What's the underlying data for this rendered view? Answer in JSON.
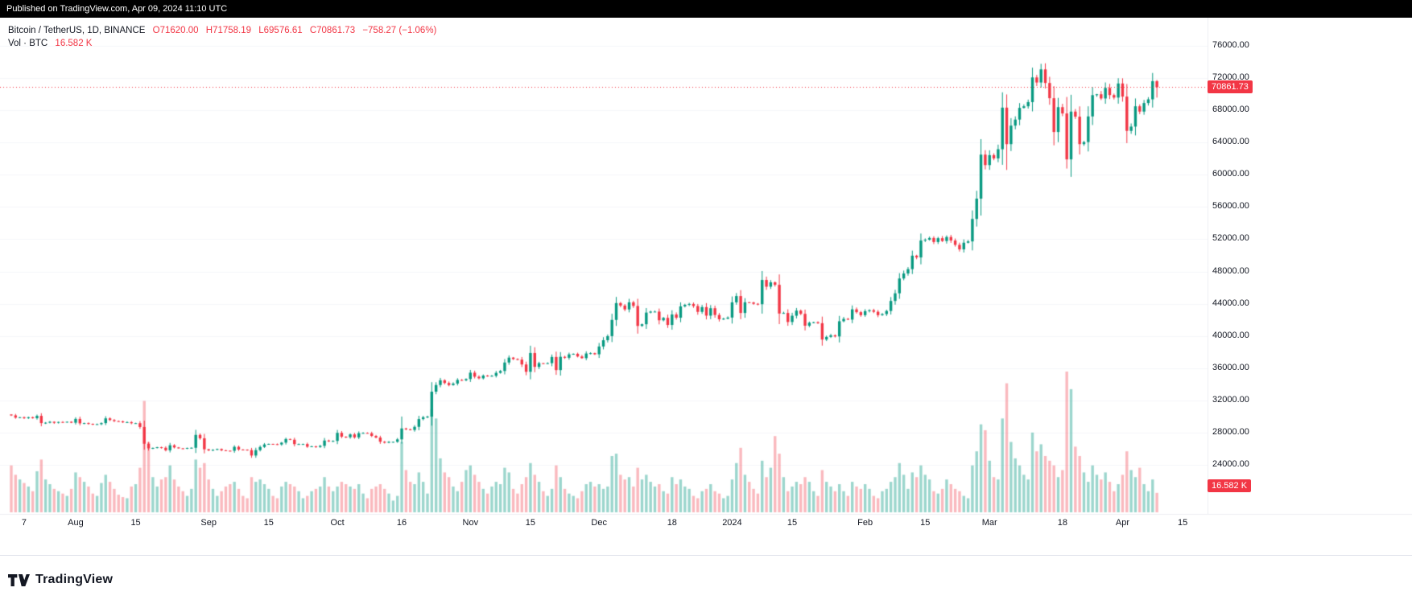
{
  "published_bar": {
    "text": "Published on TradingView.com, Apr 09, 2024 11:10 UTC"
  },
  "legend": {
    "symbol": "Bitcoin / TetherUS, 1D, BINANCE",
    "ohlc": {
      "o": "O71620.00",
      "h": "H71758.19",
      "l": "L69576.61",
      "c": "C70861.73",
      "change": "−758.27 (−1.06%)"
    },
    "volume_label": "Vol · BTC",
    "volume_value": "16.582 K"
  },
  "axis": {
    "price_badge": "70861.73",
    "volume_badge": "16.582 K"
  },
  "footer": {
    "brand": "TradingView"
  },
  "colors": {
    "up": "#089981",
    "down": "#F23645",
    "vol_up": "rgba(8,153,129,0.40)",
    "vol_down": "rgba(242,54,69,0.35)",
    "accent_red": "#F23645",
    "text_dark": "#131722",
    "grid": "#f5f6fa",
    "axis_line": "#eceef2"
  },
  "chart_data": {
    "type": "candlestick",
    "title": "Bitcoin / TetherUS, 1D, BINANCE",
    "legend_last": {
      "open": 71620.0,
      "high": 71758.19,
      "low": 69576.61,
      "close": 70861.73,
      "change": -758.27,
      "change_pct": -1.06
    },
    "ylim": [
      22800,
      76800
    ],
    "y_ticks": [
      24000,
      28000,
      32000,
      36000,
      40000,
      44000,
      48000,
      52000,
      56000,
      60000,
      64000,
      68000,
      72000,
      76000
    ],
    "x_ticks": [
      {
        "i": 3,
        "label": "7"
      },
      {
        "i": 15,
        "label": "Aug"
      },
      {
        "i": 29,
        "label": "15"
      },
      {
        "i": 46,
        "label": "Sep"
      },
      {
        "i": 60,
        "label": "15"
      },
      {
        "i": 76,
        "label": "Oct"
      },
      {
        "i": 91,
        "label": "16"
      },
      {
        "i": 107,
        "label": "Nov"
      },
      {
        "i": 121,
        "label": "15"
      },
      {
        "i": 137,
        "label": "Dec"
      },
      {
        "i": 154,
        "label": "18"
      },
      {
        "i": 168,
        "label": "2024"
      },
      {
        "i": 182,
        "label": "15"
      },
      {
        "i": 199,
        "label": "Feb"
      },
      {
        "i": 213,
        "label": "15"
      },
      {
        "i": 228,
        "label": "Mar"
      },
      {
        "i": 245,
        "label": "18"
      },
      {
        "i": 259,
        "label": "Apr"
      },
      {
        "i": 273,
        "label": "15"
      }
    ],
    "first_open": 30250,
    "closes": [
      30140,
      29860,
      29910,
      29800,
      29910,
      29790,
      30080,
      29180,
      29230,
      29350,
      29220,
      29320,
      29280,
      29350,
      29230,
      29700,
      29150,
      29180,
      29090,
      29040,
      29050,
      29180,
      29770,
      29560,
      29430,
      29400,
      29280,
      29300,
      29170,
      29170,
      28700,
      26620,
      26050,
      26100,
      26190,
      26120,
      25810,
      26430,
      26160,
      26050,
      26010,
      26100,
      26120,
      27720,
      27300,
      25930,
      25800,
      25870,
      25970,
      25810,
      25760,
      25750,
      26240,
      25900,
      25890,
      25830,
      25160,
      25830,
      26220,
      26530,
      26600,
      26570,
      26530,
      26760,
      27210,
      27120,
      26570,
      26580,
      26580,
      26250,
      26300,
      26220,
      26360,
      27020,
      26910,
      26970,
      27970,
      27500,
      27430,
      27780,
      27410,
      27930,
      27960,
      27920,
      27590,
      27390,
      26870,
      26750,
      26860,
      26860,
      27160,
      28520,
      28410,
      28330,
      28720,
      29680,
      29910,
      29990,
      33080,
      33910,
      34500,
      34160,
      33900,
      34090,
      34540,
      34500,
      34650,
      35440,
      34940,
      34740,
      35080,
      35050,
      35050,
      35420,
      35650,
      36700,
      37310,
      37130,
      37060,
      36460,
      35550,
      37880,
      36160,
      36620,
      36570,
      36620,
      37390,
      35760,
      37410,
      37290,
      37710,
      37780,
      37450,
      37240,
      37820,
      37860,
      37720,
      38690,
      39470,
      39980,
      41990,
      44080,
      43770,
      43290,
      44170,
      43720,
      41240,
      41450,
      42900,
      43020,
      43020,
      41940,
      42240,
      41360,
      42660,
      42260,
      43670,
      43860,
      43970,
      43710,
      42990,
      43580,
      42520,
      43440,
      42600,
      42070,
      42140,
      42280,
      44170,
      44950,
      42850,
      44180,
      44150,
      43990,
      43940,
      46950,
      46110,
      46650,
      46340,
      42780,
      42850,
      41730,
      42510,
      43140,
      42740,
      41270,
      41640,
      41700,
      41580,
      39550,
      39880,
      40080,
      39940,
      41820,
      42120,
      42030,
      43300,
      42950,
      42580,
      43080,
      43190,
      43000,
      42580,
      42710,
      43100,
      44340,
      45290,
      47130,
      47750,
      48290,
      49960,
      49740,
      51840,
      51940,
      52160,
      51660,
      52130,
      51780,
      52280,
      51840,
      51300,
      50740,
      51570,
      51730,
      54520,
      57040,
      62500,
      61200,
      62440,
      62030,
      63170,
      68330,
      63800,
      66100,
      66850,
      68300,
      68500,
      69020,
      72080,
      71450,
      73080,
      71390,
      69500,
      65310,
      68390,
      67610,
      61910,
      67840,
      67210,
      63800,
      64060,
      67240,
      69880,
      69990,
      69470,
      70780,
      69890,
      69580,
      71330,
      69700,
      65450,
      65980,
      68500,
      67840,
      68900,
      69360,
      71620,
      70861.73
    ],
    "volumes_k": [
      40,
      32,
      28,
      25,
      22,
      18,
      35,
      45,
      28,
      24,
      20,
      18,
      16,
      14,
      20,
      34,
      30,
      26,
      22,
      16,
      14,
      25,
      32,
      26,
      20,
      15,
      13,
      12,
      22,
      24,
      38,
      95,
      60,
      30,
      22,
      28,
      30,
      40,
      28,
      22,
      18,
      14,
      20,
      45,
      38,
      42,
      28,
      20,
      14,
      18,
      22,
      24,
      26,
      20,
      14,
      12,
      30,
      26,
      28,
      24,
      20,
      14,
      12,
      22,
      26,
      24,
      22,
      18,
      12,
      14,
      18,
      20,
      22,
      30,
      22,
      18,
      22,
      26,
      24,
      22,
      20,
      24,
      16,
      12,
      20,
      22,
      24,
      20,
      16,
      10,
      14,
      60,
      36,
      26,
      24,
      34,
      26,
      16,
      88,
      80,
      46,
      34,
      30,
      22,
      18,
      26,
      36,
      40,
      32,
      26,
      20,
      16,
      22,
      26,
      24,
      38,
      34,
      20,
      16,
      24,
      30,
      42,
      32,
      26,
      18,
      14,
      20,
      40,
      30,
      20,
      16,
      14,
      12,
      18,
      24,
      26,
      22,
      24,
      20,
      22,
      48,
      50,
      32,
      28,
      30,
      22,
      38,
      28,
      32,
      26,
      22,
      24,
      18,
      16,
      30,
      24,
      28,
      22,
      20,
      14,
      12,
      18,
      20,
      24,
      18,
      16,
      12,
      14,
      28,
      42,
      55,
      32,
      26,
      20,
      16,
      44,
      30,
      38,
      65,
      50,
      30,
      18,
      22,
      26,
      24,
      30,
      26,
      18,
      14,
      36,
      26,
      22,
      18,
      24,
      18,
      14,
      26,
      22,
      20,
      24,
      20,
      14,
      12,
      18,
      20,
      26,
      30,
      42,
      32,
      20,
      34,
      30,
      40,
      32,
      28,
      18,
      16,
      20,
      28,
      24,
      20,
      18,
      14,
      12,
      40,
      52,
      75,
      70,
      44,
      30,
      28,
      80,
      110,
      60,
      46,
      40,
      32,
      28,
      68,
      52,
      58,
      48,
      44,
      40,
      30,
      36,
      120,
      105,
      56,
      48,
      34,
      26,
      40,
      32,
      28,
      34,
      26,
      18,
      24,
      32,
      52,
      36,
      30,
      38,
      24,
      18,
      28,
      16.582
    ],
    "last_candle": {
      "open": 71620.0,
      "high": 71758.19,
      "low": 69576.61,
      "close": 70861.73,
      "volume_k": 16.582
    },
    "wick_overrides": {
      "91": {
        "high": 30000
      },
      "232": {
        "low": 60600
      },
      "240": {
        "high": 73770
      },
      "246": {
        "low": 60770
      }
    }
  }
}
